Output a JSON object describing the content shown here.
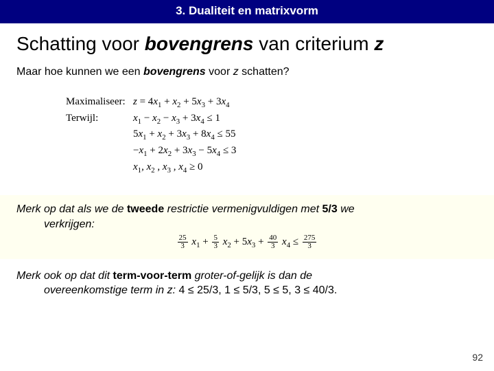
{
  "banner": {
    "text": "3. Dualiteit en matrixvorm",
    "background": "#000080",
    "color": "#ffffff"
  },
  "title": {
    "prefix": "Schatting voor ",
    "emph": "bovengrens",
    "mid": " van criterium ",
    "suffix_var": "z"
  },
  "subtitle": {
    "prefix": "Maar hoe kunnen we een ",
    "emph": "bovengrens",
    "mid": " voor ",
    "var": "z",
    "suffix": " schatten?"
  },
  "math": {
    "label_max": "Maximaliseer:",
    "label_subj": "Terwijl:",
    "objective": "z = 4x₁ + x₂ + 5x₃ + 3x₄",
    "constraints": [
      "x₁ − x₂ − x₃ + 3x₄ ≤ 1",
      "5x₁ + x₂ + 3x₃ + 8x₄ ≤ 55",
      "−x₁ + 2x₂ + 3x₃ − 5x₄ ≤ 3",
      "x₁, x₂ , x₃ , x₄ ≥ 0"
    ]
  },
  "note1": {
    "background": "#fffff0",
    "line1_a": "Merk op dat als we de ",
    "line1_b_bold": "tweede",
    "line1_c": " restrictie vermenigvuldigen met ",
    "line1_d_bold": "5/3",
    "line1_e": " we",
    "line2": "verkrijgen:",
    "formula": {
      "fractions": [
        {
          "n": "25",
          "d": "3"
        },
        {
          "n": "5",
          "d": "3"
        },
        {
          "n": "40",
          "d": "3"
        },
        {
          "n": "275",
          "d": "3"
        }
      ],
      "label": "x₁ + … x₂ + 5x₃ + … x₄ ≤ …"
    }
  },
  "note2": {
    "line1_a": "Merk ook op dat dit ",
    "line1_b_bold": "term-voor-term",
    "line1_c": " groter-of-gelijk is dan de",
    "line2_a": "overeenkomstige term in z:",
    "comparisons": "  4 ≤ 25/3, 1 ≤ 5/3, 5 ≤ 5, 3 ≤ 40/3."
  },
  "page_number": "92"
}
